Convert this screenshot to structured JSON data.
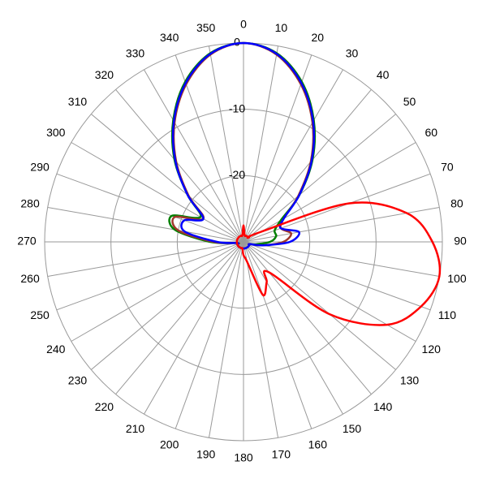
{
  "chart_data": {
    "type": "polar",
    "xticks": [
      0,
      10,
      20,
      30,
      40,
      50,
      60,
      70,
      80,
      90,
      100,
      110,
      120,
      130,
      140,
      150,
      160,
      170,
      180,
      190,
      200,
      210,
      220,
      230,
      240,
      250,
      260,
      270,
      280,
      290,
      300,
      310,
      320,
      330,
      340,
      350
    ],
    "rlim": [
      -30,
      0
    ],
    "rticks": [
      0,
      -10,
      -20
    ],
    "grid": true,
    "x": [
      0,
      10,
      20,
      30,
      40,
      50,
      60,
      70,
      80,
      90,
      100,
      110,
      120,
      130,
      140,
      150,
      160,
      170,
      180,
      190,
      200,
      210,
      220,
      230,
      240,
      250,
      260,
      270,
      280,
      290,
      300,
      310,
      320,
      330,
      340,
      350
    ],
    "series": [
      {
        "color": "#008000",
        "values": [
          0,
          -1.1,
          -4.3,
          -8.8,
          -13.8,
          -19,
          -23.5,
          -25,
          -25,
          -26,
          -28,
          -29,
          -29,
          -29,
          -29,
          -29,
          -29,
          -29,
          -29,
          -29,
          -29,
          -29,
          -29,
          -29,
          -29,
          -29,
          -29,
          -25,
          -19.5,
          -18.5,
          -22.5,
          -19,
          -13.8,
          -8.8,
          -4.3,
          -1.1
        ]
      },
      {
        "color": "#a0382a",
        "values": [
          0,
          -1.3,
          -4.7,
          -9.2,
          -14.2,
          -19.2,
          -23,
          -24,
          -22.7,
          -24,
          -27,
          -29,
          -29,
          -29,
          -29,
          -29,
          -29,
          -29,
          -29,
          -29,
          -29,
          -29,
          -29,
          -29,
          -29,
          -29,
          -29,
          -25.5,
          -20,
          -19,
          -23,
          -19.2,
          -14.2,
          -9.2,
          -4.7,
          -1.3
        ]
      },
      {
        "color": "#0000ff",
        "values": [
          0,
          -1.2,
          -4.5,
          -9,
          -14,
          -19,
          -23,
          -24,
          -21.5,
          -23,
          -27,
          -29,
          -29,
          -29,
          -29,
          -29,
          -29,
          -29,
          -29,
          -29,
          -29,
          -29,
          -29,
          -29,
          -29,
          -29,
          -29,
          -26,
          -21,
          -20.5,
          -23,
          -19,
          -14,
          -9,
          -4.5,
          -1.2
        ]
      },
      {
        "color": "#ff0000",
        "values": [
          -27.5,
          -29,
          -29,
          -29,
          -29,
          -29,
          -27,
          -13,
          -5,
          -1.5,
          0,
          -1.5,
          -5,
          -13,
          -24,
          -23,
          -21.5,
          -27,
          -28,
          -29,
          -29,
          -29,
          -29,
          -29,
          -29,
          -29,
          -29,
          -29,
          -29,
          -29,
          -29,
          -29,
          -29,
          -29,
          -29,
          -29
        ]
      }
    ]
  }
}
